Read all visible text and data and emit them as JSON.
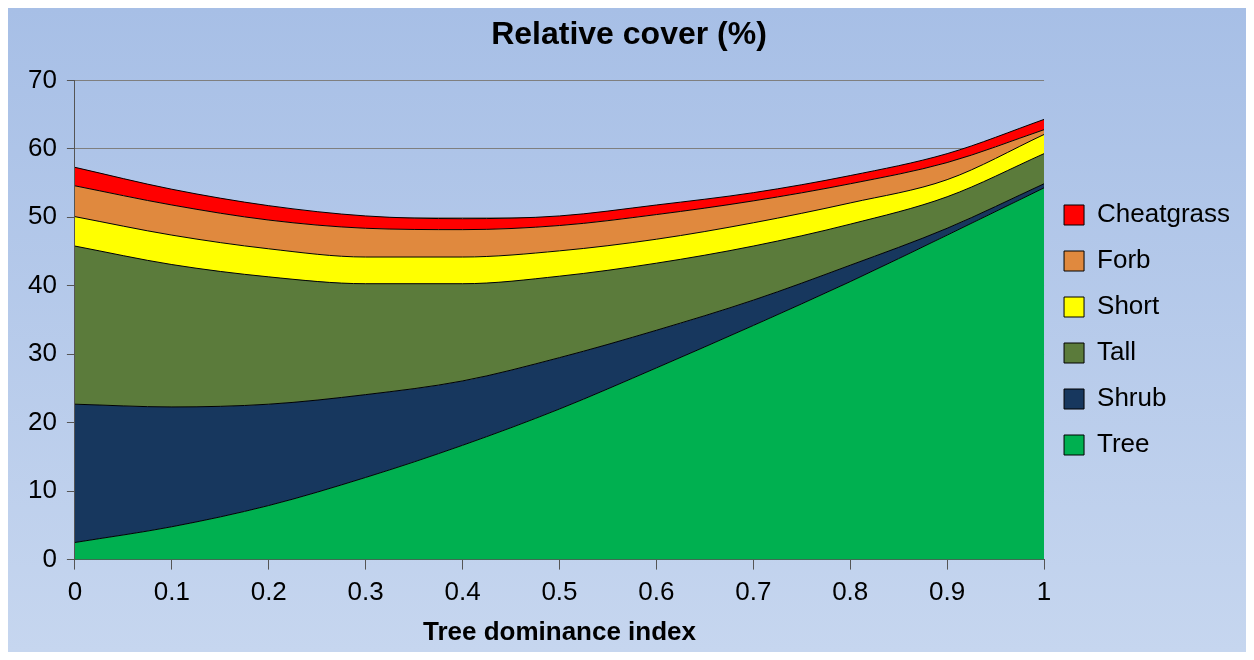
{
  "chart_data": {
    "type": "area",
    "title": "Relative cover (%)",
    "xlabel": "Tree dominance index",
    "stacked": true,
    "x": [
      0,
      0.1,
      0.2,
      0.3,
      0.4,
      0.5,
      0.6,
      0.7,
      0.8,
      0.9,
      1
    ],
    "series": [
      {
        "name": "Tree",
        "color": "#00b050",
        "values": [
          2.5,
          4.8,
          7.9,
          12,
          16.7,
          22,
          28,
          34.2,
          40.6,
          47.4,
          54.3
        ]
      },
      {
        "name": "Shrub",
        "color": "#17375e",
        "values": [
          20.2,
          17.5,
          14.8,
          12.1,
          9.4,
          7.5,
          5.5,
          3.7,
          2.4,
          1.0,
          0.6
        ]
      },
      {
        "name": "Tall",
        "color": "#5b7b3b",
        "values": [
          23.1,
          20.8,
          18.6,
          16.2,
          14.2,
          11.9,
          9.8,
          7.9,
          6.0,
          4.6,
          4.4
        ]
      },
      {
        "name": "Short",
        "color": "#ffff00",
        "values": [
          4.3,
          4.3,
          4.1,
          3.9,
          3.9,
          3.7,
          3.5,
          3.4,
          3.1,
          2.5,
          2.8
        ]
      },
      {
        "name": "Forb",
        "color": "#e0893e",
        "values": [
          4.5,
          4.4,
          4.2,
          4.2,
          4.0,
          3.7,
          3.6,
          3.2,
          2.8,
          2.5,
          0.7
        ]
      },
      {
        "name": "Cheatgrass",
        "color": "#ff0000",
        "values": [
          2.7,
          2.3,
          2.1,
          1.8,
          1.6,
          1.4,
          1.4,
          1.2,
          1.2,
          1.3,
          1.5
        ]
      }
    ],
    "xlim": [
      0,
      1
    ],
    "xticks": [
      0,
      0.1,
      0.2,
      0.3,
      0.4,
      0.5,
      0.6,
      0.7,
      0.8,
      0.9,
      1
    ],
    "ylim": [
      0,
      70
    ],
    "yticks": [
      0,
      10,
      20,
      30,
      40,
      50,
      60,
      70
    ],
    "grid": "y",
    "legend": "right"
  }
}
